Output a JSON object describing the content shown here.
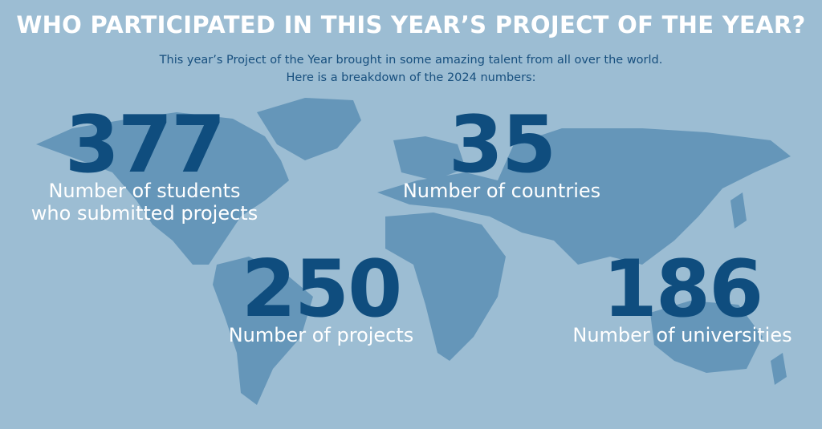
{
  "header": {
    "title": "WHO PARTICIPATED IN THIS YEAR’S PROJECT OF THE YEAR?",
    "subtitle_lines": [
      "This year’s Project of the Year brought in some amazing talent from all over the world.",
      "Here is a breakdown of the 2024 numbers:"
    ]
  },
  "stats": [
    {
      "number": "377",
      "label_lines": [
        "Number of students",
        "who submitted projects"
      ]
    },
    {
      "number": "35",
      "label_lines": [
        "Number of countries"
      ]
    },
    {
      "number": "250",
      "label_lines": [
        "Number of projects"
      ]
    },
    {
      "number": "186",
      "label_lines": [
        "Number of universities"
      ]
    }
  ]
}
